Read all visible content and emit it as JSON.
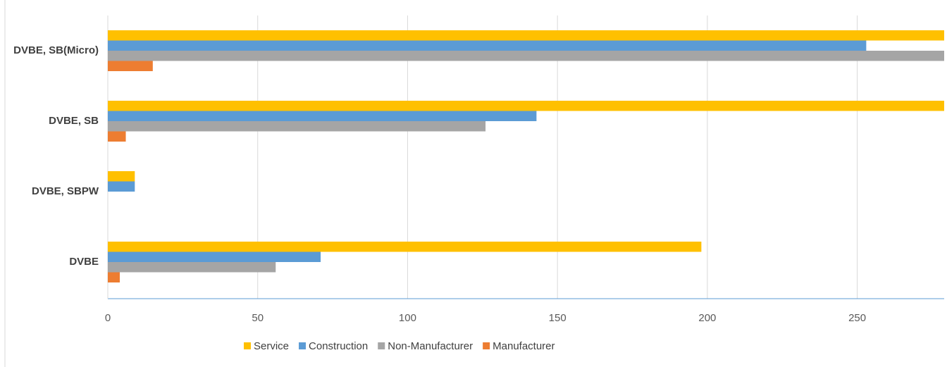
{
  "chart_data": {
    "type": "bar",
    "orientation": "horizontal",
    "categories": [
      "DVBE, SB(Micro)",
      "DVBE, SB",
      "DVBE, SBPW",
      "DVBE"
    ],
    "series": [
      {
        "name": "Service",
        "color": "#ffc000",
        "values": [
          280,
          280,
          9,
          198
        ]
      },
      {
        "name": "Construction",
        "color": "#5b9bd5",
        "values": [
          253,
          143,
          9,
          71
        ]
      },
      {
        "name": "Non-Manufacturer",
        "color": "#a5a5a5",
        "values": [
          280,
          126,
          0,
          56
        ]
      },
      {
        "name": "Manufacturer",
        "color": "#ed7d31",
        "values": [
          15,
          6,
          0,
          4
        ]
      }
    ],
    "xlim": [
      0,
      279
    ],
    "xticks": [
      0,
      50,
      100,
      150,
      200,
      250
    ],
    "grid": true,
    "legend": "bottom"
  }
}
